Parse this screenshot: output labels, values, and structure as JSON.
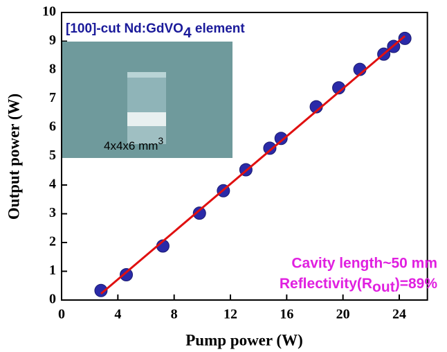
{
  "chart_data": {
    "type": "scatter",
    "xlabel": "Pump power (W)",
    "ylabel": "Output power (W)",
    "xlim": [
      0,
      26
    ],
    "xticks": [
      0,
      4,
      8,
      12,
      16,
      20,
      24
    ],
    "ylim": [
      0,
      10
    ],
    "yticks": [
      0,
      1,
      2,
      3,
      4,
      5,
      6,
      7,
      8,
      9,
      10
    ],
    "series": [
      {
        "color": "#2a2aa8",
        "x": [
          2.8,
          4.6,
          7.2,
          9.8,
          11.5,
          13.1,
          14.8,
          15.6,
          18.1,
          19.7,
          21.2,
          22.9,
          23.6,
          24.4
        ],
        "values": [
          0.33,
          0.88,
          1.88,
          3.02,
          3.8,
          4.53,
          5.28,
          5.62,
          6.72,
          7.38,
          8.02,
          8.55,
          8.82,
          9.1
        ]
      }
    ],
    "fit_line": {
      "color": "#e01010",
      "x": [
        2.8,
        24.4
      ],
      "values": [
        0.22,
        9.18
      ]
    },
    "inset_title": {
      "text": "[100]-cut Nd:GdVO",
      "sub": "4",
      "after": " element"
    },
    "inset_label": {
      "text": "4x4x6 mm",
      "sup": "3"
    },
    "annotations": [
      {
        "text": "Cavity length~50 mm"
      },
      {
        "text": "Reflectivity(R",
        "sub": "out",
        "after": ")=89%"
      }
    ]
  }
}
